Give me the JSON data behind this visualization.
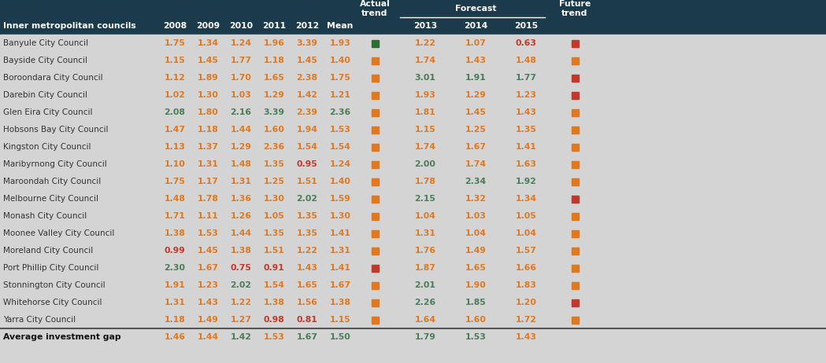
{
  "header_bg": "#1b3a4b",
  "body_bg": "#d4d4d4",
  "orange": "#e07820",
  "green": "#4a7c59",
  "red": "#c0392b",
  "dark_green": "#2d6e35",
  "rows": [
    {
      "name": "Banyule City Council",
      "values": [
        1.75,
        1.34,
        1.24,
        1.96,
        3.39,
        1.93
      ],
      "value_colors": [
        "orange",
        "orange",
        "orange",
        "orange",
        "orange",
        "orange"
      ],
      "actual_trend": "dark_green",
      "forecast": [
        1.22,
        1.07,
        0.63
      ],
      "forecast_colors": [
        "orange",
        "orange",
        "red"
      ],
      "future_trend": "red"
    },
    {
      "name": "Bayside City Council",
      "values": [
        1.15,
        1.45,
        1.77,
        1.18,
        1.45,
        1.4
      ],
      "value_colors": [
        "orange",
        "orange",
        "orange",
        "orange",
        "orange",
        "orange"
      ],
      "actual_trend": "orange",
      "forecast": [
        1.74,
        1.43,
        1.48
      ],
      "forecast_colors": [
        "orange",
        "orange",
        "orange"
      ],
      "future_trend": "orange"
    },
    {
      "name": "Boroondara City Council",
      "values": [
        1.12,
        1.89,
        1.7,
        1.65,
        2.38,
        1.75
      ],
      "value_colors": [
        "orange",
        "orange",
        "orange",
        "orange",
        "orange",
        "orange"
      ],
      "actual_trend": "orange",
      "forecast": [
        3.01,
        1.91,
        1.77
      ],
      "forecast_colors": [
        "green",
        "green",
        "green"
      ],
      "future_trend": "red"
    },
    {
      "name": "Darebin City Council",
      "values": [
        1.02,
        1.3,
        1.03,
        1.29,
        1.42,
        1.21
      ],
      "value_colors": [
        "orange",
        "orange",
        "orange",
        "orange",
        "orange",
        "orange"
      ],
      "actual_trend": "orange",
      "forecast": [
        1.93,
        1.29,
        1.23
      ],
      "forecast_colors": [
        "orange",
        "orange",
        "orange"
      ],
      "future_trend": "red"
    },
    {
      "name": "Glen Eira City Council",
      "values": [
        2.08,
        1.8,
        2.16,
        3.39,
        2.39,
        2.36
      ],
      "value_colors": [
        "green",
        "orange",
        "green",
        "green",
        "orange",
        "green"
      ],
      "actual_trend": "orange",
      "forecast": [
        1.81,
        1.45,
        1.43
      ],
      "forecast_colors": [
        "orange",
        "orange",
        "orange"
      ],
      "future_trend": "orange"
    },
    {
      "name": "Hobsons Bay City Council",
      "values": [
        1.47,
        1.18,
        1.44,
        1.6,
        1.94,
        1.53
      ],
      "value_colors": [
        "orange",
        "orange",
        "orange",
        "orange",
        "orange",
        "orange"
      ],
      "actual_trend": "orange",
      "forecast": [
        1.15,
        1.25,
        1.35
      ],
      "forecast_colors": [
        "orange",
        "orange",
        "orange"
      ],
      "future_trend": "orange"
    },
    {
      "name": "Kingston City Council",
      "values": [
        1.13,
        1.37,
        1.29,
        2.36,
        1.54,
        1.54
      ],
      "value_colors": [
        "orange",
        "orange",
        "orange",
        "orange",
        "orange",
        "orange"
      ],
      "actual_trend": "orange",
      "forecast": [
        1.74,
        1.67,
        1.41
      ],
      "forecast_colors": [
        "orange",
        "orange",
        "orange"
      ],
      "future_trend": "orange"
    },
    {
      "name": "Maribyrnong City Council",
      "values": [
        1.1,
        1.31,
        1.48,
        1.35,
        0.95,
        1.24
      ],
      "value_colors": [
        "orange",
        "orange",
        "orange",
        "orange",
        "red",
        "orange"
      ],
      "actual_trend": "orange",
      "forecast": [
        2.0,
        1.74,
        1.63
      ],
      "forecast_colors": [
        "green",
        "orange",
        "orange"
      ],
      "future_trend": "orange"
    },
    {
      "name": "Maroondah City Council",
      "values": [
        1.75,
        1.17,
        1.31,
        1.25,
        1.51,
        1.4
      ],
      "value_colors": [
        "orange",
        "orange",
        "orange",
        "orange",
        "orange",
        "orange"
      ],
      "actual_trend": "orange",
      "forecast": [
        1.78,
        2.34,
        1.92
      ],
      "forecast_colors": [
        "orange",
        "green",
        "green"
      ],
      "future_trend": "orange"
    },
    {
      "name": "Melbourne City Council",
      "values": [
        1.48,
        1.78,
        1.36,
        1.3,
        2.02,
        1.59
      ],
      "value_colors": [
        "orange",
        "orange",
        "orange",
        "orange",
        "green",
        "orange"
      ],
      "actual_trend": "orange",
      "forecast": [
        2.15,
        1.32,
        1.34
      ],
      "forecast_colors": [
        "green",
        "orange",
        "orange"
      ],
      "future_trend": "red"
    },
    {
      "name": "Monash City Council",
      "values": [
        1.71,
        1.11,
        1.26,
        1.05,
        1.35,
        1.3
      ],
      "value_colors": [
        "orange",
        "orange",
        "orange",
        "orange",
        "orange",
        "orange"
      ],
      "actual_trend": "orange",
      "forecast": [
        1.04,
        1.03,
        1.05
      ],
      "forecast_colors": [
        "orange",
        "orange",
        "orange"
      ],
      "future_trend": "orange"
    },
    {
      "name": "Moonee Valley City Council",
      "values": [
        1.38,
        1.53,
        1.44,
        1.35,
        1.35,
        1.41
      ],
      "value_colors": [
        "orange",
        "orange",
        "orange",
        "orange",
        "orange",
        "orange"
      ],
      "actual_trend": "orange",
      "forecast": [
        1.31,
        1.04,
        1.04
      ],
      "forecast_colors": [
        "orange",
        "orange",
        "orange"
      ],
      "future_trend": "orange"
    },
    {
      "name": "Moreland City Council",
      "values": [
        0.99,
        1.45,
        1.38,
        1.51,
        1.22,
        1.31
      ],
      "value_colors": [
        "red",
        "orange",
        "orange",
        "orange",
        "orange",
        "orange"
      ],
      "actual_trend": "orange",
      "forecast": [
        1.76,
        1.49,
        1.57
      ],
      "forecast_colors": [
        "orange",
        "orange",
        "orange"
      ],
      "future_trend": "orange"
    },
    {
      "name": "Port Phillip City Council",
      "values": [
        2.3,
        1.67,
        0.75,
        0.91,
        1.43,
        1.41
      ],
      "value_colors": [
        "green",
        "orange",
        "red",
        "red",
        "orange",
        "orange"
      ],
      "actual_trend": "red",
      "forecast": [
        1.87,
        1.65,
        1.66
      ],
      "forecast_colors": [
        "orange",
        "orange",
        "orange"
      ],
      "future_trend": "orange"
    },
    {
      "name": "Stonnington City Council",
      "values": [
        1.91,
        1.23,
        2.02,
        1.54,
        1.65,
        1.67
      ],
      "value_colors": [
        "orange",
        "orange",
        "green",
        "orange",
        "orange",
        "orange"
      ],
      "actual_trend": "orange",
      "forecast": [
        2.01,
        1.9,
        1.83
      ],
      "forecast_colors": [
        "green",
        "orange",
        "orange"
      ],
      "future_trend": "orange"
    },
    {
      "name": "Whitehorse City Council",
      "values": [
        1.31,
        1.43,
        1.22,
        1.38,
        1.56,
        1.38
      ],
      "value_colors": [
        "orange",
        "orange",
        "orange",
        "orange",
        "orange",
        "orange"
      ],
      "actual_trend": "orange",
      "forecast": [
        2.26,
        1.85,
        1.2
      ],
      "forecast_colors": [
        "green",
        "green",
        "orange"
      ],
      "future_trend": "red"
    },
    {
      "name": "Yarra City Council",
      "values": [
        1.18,
        1.49,
        1.27,
        0.98,
        0.81,
        1.15
      ],
      "value_colors": [
        "orange",
        "orange",
        "orange",
        "red",
        "red",
        "orange"
      ],
      "actual_trend": "orange",
      "forecast": [
        1.64,
        1.6,
        1.72
      ],
      "forecast_colors": [
        "orange",
        "orange",
        "orange"
      ],
      "future_trend": "orange"
    }
  ],
  "avg_row": {
    "name": "Average investment gap",
    "values": [
      1.46,
      1.44,
      1.42,
      1.53,
      1.67,
      1.5
    ],
    "value_colors": [
      "orange",
      "orange",
      "green",
      "orange",
      "green",
      "green"
    ],
    "forecast": [
      1.79,
      1.53,
      1.43
    ],
    "forecast_colors": [
      "green",
      "green",
      "orange"
    ]
  }
}
